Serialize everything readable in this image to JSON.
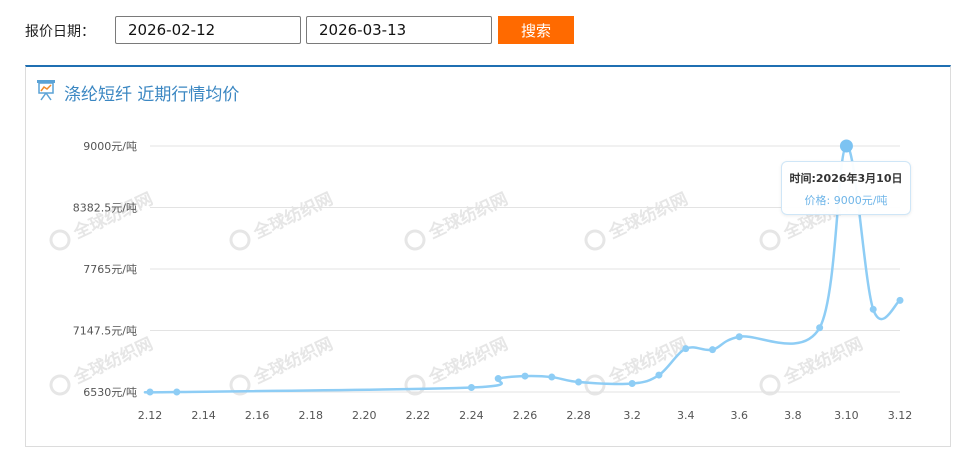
{
  "search": {
    "label": "报价日期：",
    "start_date": "2026-02-12",
    "end_date": "2026-03-13",
    "button_label": "搜索"
  },
  "panel": {
    "title": "涤纶短纤 近期行情均价",
    "icon": "chart-presentation-icon"
  },
  "watermark": {
    "text": "全球纺织网",
    "color": "#e6e6e6"
  },
  "tooltip": {
    "time_label": "时间:2026年3月10日",
    "price_label": "价格: 9000元/吨"
  },
  "colors": {
    "accent_orange": "#ff6a00",
    "line_blue": "#8ecdf5",
    "title_blue": "#3b87c2",
    "panel_border_top": "#1f6fb2"
  },
  "chart_data": {
    "type": "line",
    "categories": [
      "2.12",
      "2.13",
      "2.24",
      "2.25",
      "2.26",
      "2.27",
      "2.28",
      "3.2",
      "3.3",
      "3.4",
      "3.5",
      "3.6",
      "3.9",
      "3.10",
      "3.11",
      "3.12"
    ],
    "x_tick_labels": [
      "2.12",
      "2.14",
      "2.16",
      "2.18",
      "2.20",
      "2.22",
      "2.24",
      "2.26",
      "2.28",
      "3.2",
      "3.4",
      "3.6",
      "3.8",
      "3.10",
      "3.12"
    ],
    "y_tick_labels": [
      "9000元/吨",
      "8382.5元/吨",
      "7765元/吨",
      "7147.5元/吨",
      "6530元/吨"
    ],
    "y_ticks": [
      9000,
      8382.5,
      7765,
      7147.5,
      6530
    ],
    "ylim": [
      6530,
      9000
    ],
    "series": [
      {
        "values": [
          6530,
          6530,
          6575,
          6665,
          6690,
          6680,
          6630,
          6615,
          6700,
          6965,
          6955,
          7085,
          7175,
          9000,
          7360,
          7450
        ],
        "x_positions": [
          2.12,
          2.13,
          2.24,
          2.25,
          2.26,
          2.27,
          2.28,
          3.2,
          3.3,
          3.4,
          3.5,
          3.6,
          3.9,
          3.1,
          3.11,
          3.12
        ]
      }
    ],
    "highlighted_point": {
      "category": "3.10",
      "value": 9000
    },
    "grid": true,
    "legend": "none"
  }
}
